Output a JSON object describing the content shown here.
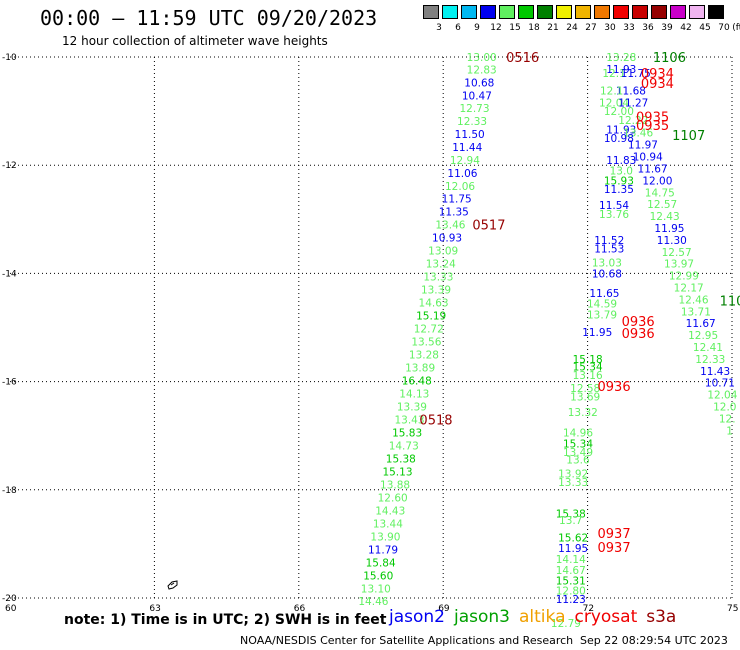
{
  "header": {
    "title": "00:00 – 11:59 UTC 09/20/2023",
    "subtitle": "12 hour collection of altimeter wave heights"
  },
  "scale": {
    "unit": "(ft)",
    "labels": [
      "3",
      "6",
      "9",
      "12",
      "15",
      "18",
      "21",
      "24",
      "27",
      "30",
      "33",
      "36",
      "39",
      "42",
      "45",
      "70"
    ],
    "colors": [
      "#808080",
      "#00f0f0",
      "#00b8f0",
      "#0000f0",
      "#60f060",
      "#00c800",
      "#008000",
      "#f0f000",
      "#f0b400",
      "#f07800",
      "#f00000",
      "#c80000",
      "#960000",
      "#c800c8",
      "#f0b4f0",
      "#000000"
    ]
  },
  "axes": {
    "lat_labels": [
      "-10",
      "-12",
      "-14",
      "-16",
      "-18",
      "-20"
    ],
    "lon_labels": [
      "60",
      "63",
      "66",
      "69",
      "72",
      "75"
    ]
  },
  "chart_data": {
    "type": "map",
    "lat_range": [
      -20,
      -10
    ],
    "lon_range": [
      60,
      75
    ],
    "track_heights": [
      {
        "lat": -10.0,
        "lon": 69.8,
        "v": "13.00",
        "c": "#60f060"
      },
      {
        "lat": -10.23,
        "lon": 69.8,
        "v": "12.83",
        "c": "#60f060"
      },
      {
        "lat": -10.47,
        "lon": 69.75,
        "v": "10.68",
        "c": "#0000f0"
      },
      {
        "lat": -10.71,
        "lon": 69.7,
        "v": "10.47",
        "c": "#0000f0"
      },
      {
        "lat": -10.94,
        "lon": 69.65,
        "v": "12.73",
        "c": "#60f060"
      },
      {
        "lat": -11.18,
        "lon": 69.6,
        "v": "12.33",
        "c": "#60f060"
      },
      {
        "lat": -11.42,
        "lon": 69.55,
        "v": "11.50",
        "c": "#0000f0"
      },
      {
        "lat": -11.66,
        "lon": 69.5,
        "v": "11.44",
        "c": "#0000f0"
      },
      {
        "lat": -11.9,
        "lon": 69.45,
        "v": "12.94",
        "c": "#60f060"
      },
      {
        "lat": -12.14,
        "lon": 69.4,
        "v": "11.06",
        "c": "#0000f0"
      },
      {
        "lat": -12.38,
        "lon": 69.35,
        "v": "12.06",
        "c": "#60f060"
      },
      {
        "lat": -12.62,
        "lon": 69.28,
        "v": "11.75",
        "c": "#0000f0"
      },
      {
        "lat": -12.86,
        "lon": 69.22,
        "v": "11.35",
        "c": "#0000f0"
      },
      {
        "lat": -13.1,
        "lon": 69.15,
        "v": "13.46",
        "c": "#60f060"
      },
      {
        "lat": -13.34,
        "lon": 69.08,
        "v": "10.93",
        "c": "#0000f0"
      },
      {
        "lat": -13.58,
        "lon": 69.0,
        "v": "13.09",
        "c": "#60f060"
      },
      {
        "lat": -13.82,
        "lon": 68.95,
        "v": "13.24",
        "c": "#60f060"
      },
      {
        "lat": -14.06,
        "lon": 68.9,
        "v": "13.33",
        "c": "#60f060"
      },
      {
        "lat": -14.3,
        "lon": 68.85,
        "v": "13.39",
        "c": "#60f060"
      },
      {
        "lat": -14.54,
        "lon": 68.8,
        "v": "14.63",
        "c": "#60f060"
      },
      {
        "lat": -14.78,
        "lon": 68.75,
        "v": "15.19",
        "c": "#00c800"
      },
      {
        "lat": -15.02,
        "lon": 68.7,
        "v": "12.72",
        "c": "#60f060"
      },
      {
        "lat": -15.26,
        "lon": 68.65,
        "v": "13.56",
        "c": "#60f060"
      },
      {
        "lat": -15.5,
        "lon": 68.6,
        "v": "13.28",
        "c": "#60f060"
      },
      {
        "lat": -15.74,
        "lon": 68.52,
        "v": "13.89",
        "c": "#60f060"
      },
      {
        "lat": -15.98,
        "lon": 68.45,
        "v": "16.48",
        "c": "#00c800"
      },
      {
        "lat": -16.22,
        "lon": 68.4,
        "v": "14.13",
        "c": "#60f060"
      },
      {
        "lat": -16.46,
        "lon": 68.35,
        "v": "13.39",
        "c": "#60f060"
      },
      {
        "lat": -16.7,
        "lon": 68.3,
        "v": "13.43",
        "c": "#60f060"
      },
      {
        "lat": -16.94,
        "lon": 68.25,
        "v": "15.83",
        "c": "#00c800"
      },
      {
        "lat": -17.18,
        "lon": 68.18,
        "v": "14.73",
        "c": "#60f060"
      },
      {
        "lat": -17.42,
        "lon": 68.12,
        "v": "15.38",
        "c": "#00c800"
      },
      {
        "lat": -17.66,
        "lon": 68.05,
        "v": "15.13",
        "c": "#00c800"
      },
      {
        "lat": -17.9,
        "lon": 68.0,
        "v": "13.88",
        "c": "#60f060"
      },
      {
        "lat": -18.14,
        "lon": 67.95,
        "v": "12.60",
        "c": "#60f060"
      },
      {
        "lat": -18.38,
        "lon": 67.9,
        "v": "14.43",
        "c": "#60f060"
      },
      {
        "lat": -18.62,
        "lon": 67.85,
        "v": "13.44",
        "c": "#60f060"
      },
      {
        "lat": -18.86,
        "lon": 67.8,
        "v": "13.90",
        "c": "#60f060"
      },
      {
        "lat": -19.1,
        "lon": 67.75,
        "v": "11.79",
        "c": "#0000f0"
      },
      {
        "lat": -19.34,
        "lon": 67.7,
        "v": "15.84",
        "c": "#00c800"
      },
      {
        "lat": -19.58,
        "lon": 67.65,
        "v": "15.60",
        "c": "#00c800"
      },
      {
        "lat": -19.82,
        "lon": 67.6,
        "v": "13.10",
        "c": "#60f060"
      },
      {
        "lat": -20.06,
        "lon": 67.55,
        "v": "14.46",
        "c": "#60f060"
      },
      {
        "lat": -10.0,
        "lon": 72.7,
        "v": "13.28",
        "c": "#60f060"
      },
      {
        "lat": -10.22,
        "lon": 72.7,
        "v": "11.93",
        "c": "#0000f0"
      },
      {
        "lat": -10.3,
        "lon": 72.55,
        "v": "12.1",
        "c": "#60f060"
      },
      {
        "lat": -10.3,
        "lon": 73.0,
        "v": "11.75",
        "c": "#0000f0"
      },
      {
        "lat": -10.62,
        "lon": 72.9,
        "v": "11.68",
        "c": "#0000f0"
      },
      {
        "lat": -10.62,
        "lon": 72.5,
        "v": "12.1",
        "c": "#60f060"
      },
      {
        "lat": -10.84,
        "lon": 72.55,
        "v": "12.04",
        "c": "#60f060"
      },
      {
        "lat": -10.84,
        "lon": 72.95,
        "v": "11.27",
        "c": "#0000f0"
      },
      {
        "lat": -11.0,
        "lon": 72.65,
        "v": "12.00",
        "c": "#60f060"
      },
      {
        "lat": -11.16,
        "lon": 72.95,
        "v": "12.22",
        "c": "#60f060"
      },
      {
        "lat": -11.34,
        "lon": 72.7,
        "v": "11.93",
        "c": "#0000f0"
      },
      {
        "lat": -11.4,
        "lon": 73.05,
        "v": "13.46",
        "c": "#60f060"
      },
      {
        "lat": -11.5,
        "lon": 72.65,
        "v": "10.98",
        "c": "#0000f0"
      },
      {
        "lat": -11.62,
        "lon": 73.15,
        "v": "11.97",
        "c": "#0000f0"
      },
      {
        "lat": -11.84,
        "lon": 73.25,
        "v": "10.94",
        "c": "#0000f0"
      },
      {
        "lat": -11.9,
        "lon": 72.7,
        "v": "11.83",
        "c": "#0000f0"
      },
      {
        "lat": -12.06,
        "lon": 73.35,
        "v": "11.67",
        "c": "#0000f0"
      },
      {
        "lat": -12.1,
        "lon": 72.7,
        "v": "13.0",
        "c": "#60f060"
      },
      {
        "lat": -12.28,
        "lon": 73.45,
        "v": "12.00",
        "c": "#0000f0"
      },
      {
        "lat": -12.28,
        "lon": 72.65,
        "v": "15.93",
        "c": "#00c800"
      },
      {
        "lat": -12.44,
        "lon": 72.65,
        "v": "11.35",
        "c": "#0000f0"
      },
      {
        "lat": -12.5,
        "lon": 73.5,
        "v": "14.75",
        "c": "#60f060"
      },
      {
        "lat": -12.72,
        "lon": 73.55,
        "v": "12.57",
        "c": "#60f060"
      },
      {
        "lat": -12.74,
        "lon": 72.55,
        "v": "11.54",
        "c": "#0000f0"
      },
      {
        "lat": -12.9,
        "lon": 72.55,
        "v": "13.76",
        "c": "#60f060"
      },
      {
        "lat": -12.94,
        "lon": 73.6,
        "v": "12.43",
        "c": "#60f060"
      },
      {
        "lat": -13.16,
        "lon": 73.7,
        "v": "11.95",
        "c": "#0000f0"
      },
      {
        "lat": -13.38,
        "lon": 73.75,
        "v": "11.30",
        "c": "#0000f0"
      },
      {
        "lat": -13.38,
        "lon": 72.45,
        "v": "11.52",
        "c": "#0000f0"
      },
      {
        "lat": -13.54,
        "lon": 72.45,
        "v": "11.53",
        "c": "#0000f0"
      },
      {
        "lat": -13.6,
        "lon": 73.85,
        "v": "12.57",
        "c": "#60f060"
      },
      {
        "lat": -13.8,
        "lon": 72.4,
        "v": "13.03",
        "c": "#60f060"
      },
      {
        "lat": -13.82,
        "lon": 73.9,
        "v": "13.97",
        "c": "#60f060"
      },
      {
        "lat": -14.0,
        "lon": 72.4,
        "v": "10.68",
        "c": "#0000f0"
      },
      {
        "lat": -14.04,
        "lon": 74.0,
        "v": "12.99",
        "c": "#60f060"
      },
      {
        "lat": -14.26,
        "lon": 74.1,
        "v": "12.17",
        "c": "#60f060"
      },
      {
        "lat": -14.36,
        "lon": 72.35,
        "v": "11.65",
        "c": "#0000f0"
      },
      {
        "lat": -14.48,
        "lon": 74.2,
        "v": "12.46",
        "c": "#60f060"
      },
      {
        "lat": -14.56,
        "lon": 72.3,
        "v": "14.59",
        "c": "#60f060"
      },
      {
        "lat": -14.7,
        "lon": 74.25,
        "v": "13.71",
        "c": "#60f060"
      },
      {
        "lat": -14.76,
        "lon": 72.3,
        "v": "13.79",
        "c": "#60f060"
      },
      {
        "lat": -14.92,
        "lon": 74.35,
        "v": "11.67",
        "c": "#0000f0"
      },
      {
        "lat": -15.08,
        "lon": 72.2,
        "v": "11.95",
        "c": "#0000f0"
      },
      {
        "lat": -15.14,
        "lon": 74.4,
        "v": "12.95",
        "c": "#60f060"
      },
      {
        "lat": -15.36,
        "lon": 74.5,
        "v": "12.41",
        "c": "#60f060"
      },
      {
        "lat": -15.58,
        "lon": 72.0,
        "v": "15.18",
        "c": "#00c800"
      },
      {
        "lat": -15.58,
        "lon": 74.55,
        "v": "12.33",
        "c": "#60f060"
      },
      {
        "lat": -15.72,
        "lon": 72.0,
        "v": "15.34",
        "c": "#00c800"
      },
      {
        "lat": -15.8,
        "lon": 74.65,
        "v": "11.43",
        "c": "#0000f0"
      },
      {
        "lat": -15.88,
        "lon": 72.0,
        "v": "13.16",
        "c": "#60f060"
      },
      {
        "lat": -16.02,
        "lon": 74.75,
        "v": "10.71",
        "c": "#0000f0"
      },
      {
        "lat": -16.12,
        "lon": 71.95,
        "v": "12.58",
        "c": "#60f060"
      },
      {
        "lat": -16.24,
        "lon": 74.8,
        "v": "12.04",
        "c": "#60f060"
      },
      {
        "lat": -16.28,
        "lon": 71.95,
        "v": "13.69",
        "c": "#60f060"
      },
      {
        "lat": -16.46,
        "lon": 74.85,
        "v": "12.0",
        "c": "#60f060"
      },
      {
        "lat": -16.56,
        "lon": 71.9,
        "v": "13.32",
        "c": "#60f060"
      },
      {
        "lat": -16.68,
        "lon": 74.9,
        "v": "12.",
        "c": "#60f060"
      },
      {
        "lat": -16.9,
        "lon": 74.95,
        "v": "1",
        "c": "#60f060"
      },
      {
        "lat": -16.94,
        "lon": 71.8,
        "v": "14.96",
        "c": "#60f060"
      },
      {
        "lat": -17.14,
        "lon": 71.8,
        "v": "15.34",
        "c": "#00c800"
      },
      {
        "lat": -17.3,
        "lon": 71.8,
        "v": "13.49",
        "c": "#60f060"
      },
      {
        "lat": -17.44,
        "lon": 71.8,
        "v": "13.6",
        "c": "#60f060"
      },
      {
        "lat": -17.7,
        "lon": 71.7,
        "v": "13.92",
        "c": "#60f060"
      },
      {
        "lat": -17.86,
        "lon": 71.7,
        "v": "13.33",
        "c": "#60f060"
      },
      {
        "lat": -18.44,
        "lon": 71.65,
        "v": "15.38",
        "c": "#00c800"
      },
      {
        "lat": -18.56,
        "lon": 71.65,
        "v": "13.7",
        "c": "#60f060"
      },
      {
        "lat": -18.88,
        "lon": 71.7,
        "v": "15.62",
        "c": "#00c800"
      },
      {
        "lat": -19.08,
        "lon": 71.7,
        "v": "11.95",
        "c": "#0000f0"
      },
      {
        "lat": -19.28,
        "lon": 71.65,
        "v": "14.14",
        "c": "#60f060"
      },
      {
        "lat": -19.48,
        "lon": 71.65,
        "v": "14.67",
        "c": "#60f060"
      },
      {
        "lat": -19.68,
        "lon": 71.65,
        "v": "15.31",
        "c": "#00c800"
      },
      {
        "lat": -19.86,
        "lon": 71.65,
        "v": "12.80",
        "c": "#60f060"
      },
      {
        "lat": -20.02,
        "lon": 71.65,
        "v": "11.23",
        "c": "#0000f0"
      },
      {
        "lat": -20.46,
        "lon": 71.55,
        "v": "12.79",
        "c": "#60f060"
      }
    ],
    "pass_times": [
      {
        "lat": -10.0,
        "lon": 70.65,
        "v": "0516",
        "c": "#960000"
      },
      {
        "lat": -13.1,
        "lon": 69.95,
        "v": "0517",
        "c": "#960000"
      },
      {
        "lat": -16.7,
        "lon": 68.85,
        "v": "0518",
        "c": "#960000"
      },
      {
        "lat": -10.0,
        "lon": 73.7,
        "v": "1106",
        "c": "#008000"
      },
      {
        "lat": -10.3,
        "lon": 73.45,
        "v": "0934",
        "c": "#f00000"
      },
      {
        "lat": -10.48,
        "lon": 73.45,
        "v": "0934",
        "c": "#f00000"
      },
      {
        "lat": -11.1,
        "lon": 73.35,
        "v": "0935",
        "c": "#f00000"
      },
      {
        "lat": -11.26,
        "lon": 73.35,
        "v": "0935",
        "c": "#f00000"
      },
      {
        "lat": -11.44,
        "lon": 74.1,
        "v": "1107",
        "c": "#008000"
      },
      {
        "lat": -14.5,
        "lon": 75.0,
        "v": "110",
        "c": "#008000"
      },
      {
        "lat": -14.88,
        "lon": 73.05,
        "v": "0936",
        "c": "#f00000"
      },
      {
        "lat": -15.1,
        "lon": 73.05,
        "v": "0936",
        "c": "#f00000"
      },
      {
        "lat": -16.08,
        "lon": 72.55,
        "v": "0936",
        "c": "#f00000"
      },
      {
        "lat": -18.8,
        "lon": 72.55,
        "v": "0937",
        "c": "#f00000"
      },
      {
        "lat": -19.06,
        "lon": 72.55,
        "v": "0937",
        "c": "#f00000"
      }
    ]
  },
  "note": "note: 1) Time is in UTC; 2) SWH is in feet",
  "satellites": [
    {
      "name": "jason2",
      "color": "#0000f0"
    },
    {
      "name": "jason3",
      "color": "#00a000"
    },
    {
      "name": "altika",
      "color": "#f0a000"
    },
    {
      "name": "cryosat",
      "color": "#f00000"
    },
    {
      "name": "s3a",
      "color": "#960000"
    }
  ],
  "footer": {
    "left": "NOAA/NESDIS Center for Satellite Applications and Research",
    "right": "Sep 22 08:29:54 UTC 2023"
  }
}
